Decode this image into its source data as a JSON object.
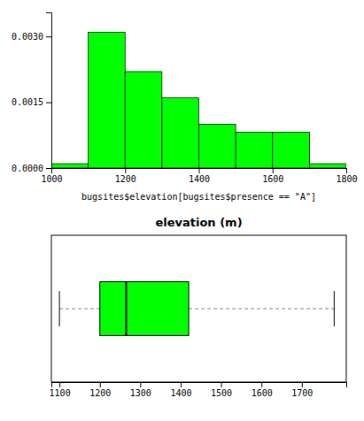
{
  "chart_data": [
    {
      "type": "histogram",
      "bins": [
        1000,
        1100,
        1200,
        1300,
        1400,
        1500,
        1600,
        1700,
        1800
      ],
      "values": [
        0.0001,
        0.0031,
        0.0022,
        0.0016,
        0.001,
        0.00082,
        0.00082,
        0.0001
      ],
      "color": "#00FF00",
      "xlabel": "bugsites$elevation[bugsites$presence == \"A\"]",
      "xlim": [
        1000,
        1800
      ],
      "ylim": [
        0,
        0.00355
      ],
      "xticks": [
        1000,
        1200,
        1400,
        1600,
        1800
      ],
      "yticks": [
        {
          "value": 0,
          "label": "0.0000"
        },
        0.0015,
        {
          "value": 0.003,
          "label": "0.0030"
        }
      ]
    },
    {
      "type": "box",
      "title": "elevation (m)",
      "q1": 1200,
      "median": 1265,
      "q3": 1420,
      "whisker_low": 1100,
      "whisker_high": 1780,
      "color": "#00FF00",
      "xlim": [
        1080,
        1810
      ],
      "xticks": [
        1100,
        1200,
        1300,
        1400,
        1500,
        1600,
        1700
      ],
      "tick_labels": "x"
    }
  ]
}
